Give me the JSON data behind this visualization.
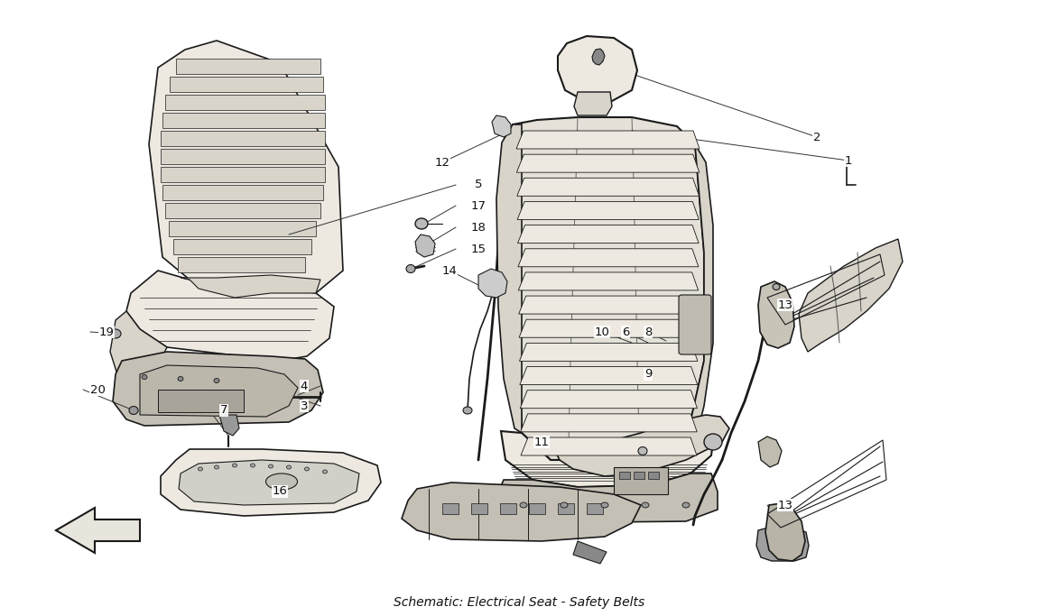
{
  "title": "Schematic: Electrical Seat - Safety Belts",
  "bg_color": "#FFFFFF",
  "lc": "#1a1a1a",
  "fig_width": 11.5,
  "fig_height": 6.83,
  "dpi": 100,
  "label_positions": [
    [
      "1",
      940,
      178
    ],
    [
      "2",
      905,
      152
    ],
    [
      "5",
      530,
      205
    ],
    [
      "17",
      530,
      228
    ],
    [
      "18",
      530,
      252
    ],
    [
      "15",
      530,
      276
    ],
    [
      "12",
      490,
      180
    ],
    [
      "14",
      498,
      300
    ],
    [
      "19",
      118,
      368
    ],
    [
      "20",
      108,
      432
    ],
    [
      "4",
      337,
      428
    ],
    [
      "3",
      337,
      450
    ],
    [
      "7",
      248,
      455
    ],
    [
      "10",
      667,
      368
    ],
    [
      "6",
      693,
      368
    ],
    [
      "8",
      718,
      368
    ],
    [
      "9",
      718,
      415
    ],
    [
      "16",
      310,
      545
    ],
    [
      "11",
      600,
      490
    ],
    [
      "13",
      870,
      338
    ],
    [
      "13",
      870,
      560
    ]
  ]
}
